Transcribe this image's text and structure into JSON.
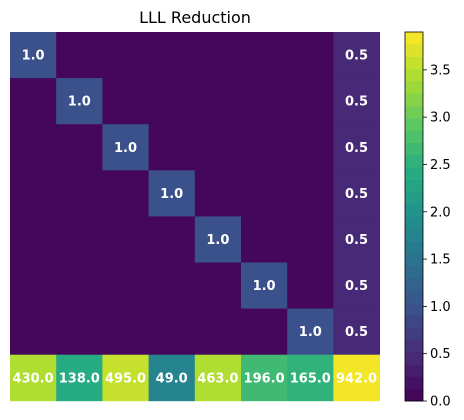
{
  "chart_data": {
    "type": "heatmap",
    "title": "LLL Reduction",
    "colormap": "viridis",
    "colorbar": {
      "min": 0.0,
      "max": 3.9,
      "ticks": [
        "0.0",
        "0.5",
        "1.0",
        "1.5",
        "2.0",
        "2.5",
        "3.0",
        "3.5"
      ],
      "levels": 30
    },
    "rows": [
      [
        1.0,
        0,
        0,
        0,
        0,
        0,
        0,
        0.5
      ],
      [
        0,
        1.0,
        0,
        0,
        0,
        0,
        0,
        0.5
      ],
      [
        0,
        0,
        1.0,
        0,
        0,
        0,
        0,
        0.5
      ],
      [
        0,
        0,
        0,
        1.0,
        0,
        0,
        0,
        0.5
      ],
      [
        0,
        0,
        0,
        0,
        1.0,
        0,
        0,
        0.5
      ],
      [
        0,
        0,
        0,
        0,
        0,
        1.0,
        0,
        0.5
      ],
      [
        0,
        0,
        0,
        0,
        0,
        0,
        1.0,
        0.5
      ],
      [
        430.0,
        138.0,
        495.0,
        49.0,
        463.0,
        196.0,
        165.0,
        942.0
      ]
    ],
    "color_values": [
      [
        1.0,
        0,
        0,
        0,
        0,
        0,
        0,
        0.5
      ],
      [
        0,
        1.0,
        0,
        0,
        0,
        0,
        0,
        0.5
      ],
      [
        0,
        0,
        1.0,
        0,
        0,
        0,
        0,
        0.5
      ],
      [
        0,
        0,
        0,
        1.0,
        0,
        0,
        0,
        0.5
      ],
      [
        0,
        0,
        0,
        0,
        1.0,
        0,
        0,
        0.5
      ],
      [
        0,
        0,
        0,
        0,
        0,
        1.0,
        0,
        0.5
      ],
      [
        0,
        0,
        0,
        0,
        0,
        0,
        1.0,
        0.5
      ],
      [
        3.4,
        2.45,
        3.55,
        1.8,
        3.45,
        2.7,
        2.55,
        3.9
      ]
    ],
    "cell_labels": [
      [
        "1.0",
        "",
        "",
        "",
        "",
        "",
        "",
        "0.5"
      ],
      [
        "",
        "1.0",
        "",
        "",
        "",
        "",
        "",
        "0.5"
      ],
      [
        "",
        "",
        "1.0",
        "",
        "",
        "",
        "",
        "0.5"
      ],
      [
        "",
        "",
        "",
        "1.0",
        "",
        "",
        "",
        "0.5"
      ],
      [
        "",
        "",
        "",
        "",
        "1.0",
        "",
        "",
        "0.5"
      ],
      [
        "",
        "",
        "",
        "",
        "",
        "1.0",
        "",
        "0.5"
      ],
      [
        "",
        "",
        "",
        "",
        "",
        "",
        "1.0",
        "0.5"
      ],
      [
        "430.0",
        "138.0",
        "495.0",
        "49.0",
        "463.0",
        "196.0",
        "165.0",
        "942.0"
      ]
    ]
  }
}
